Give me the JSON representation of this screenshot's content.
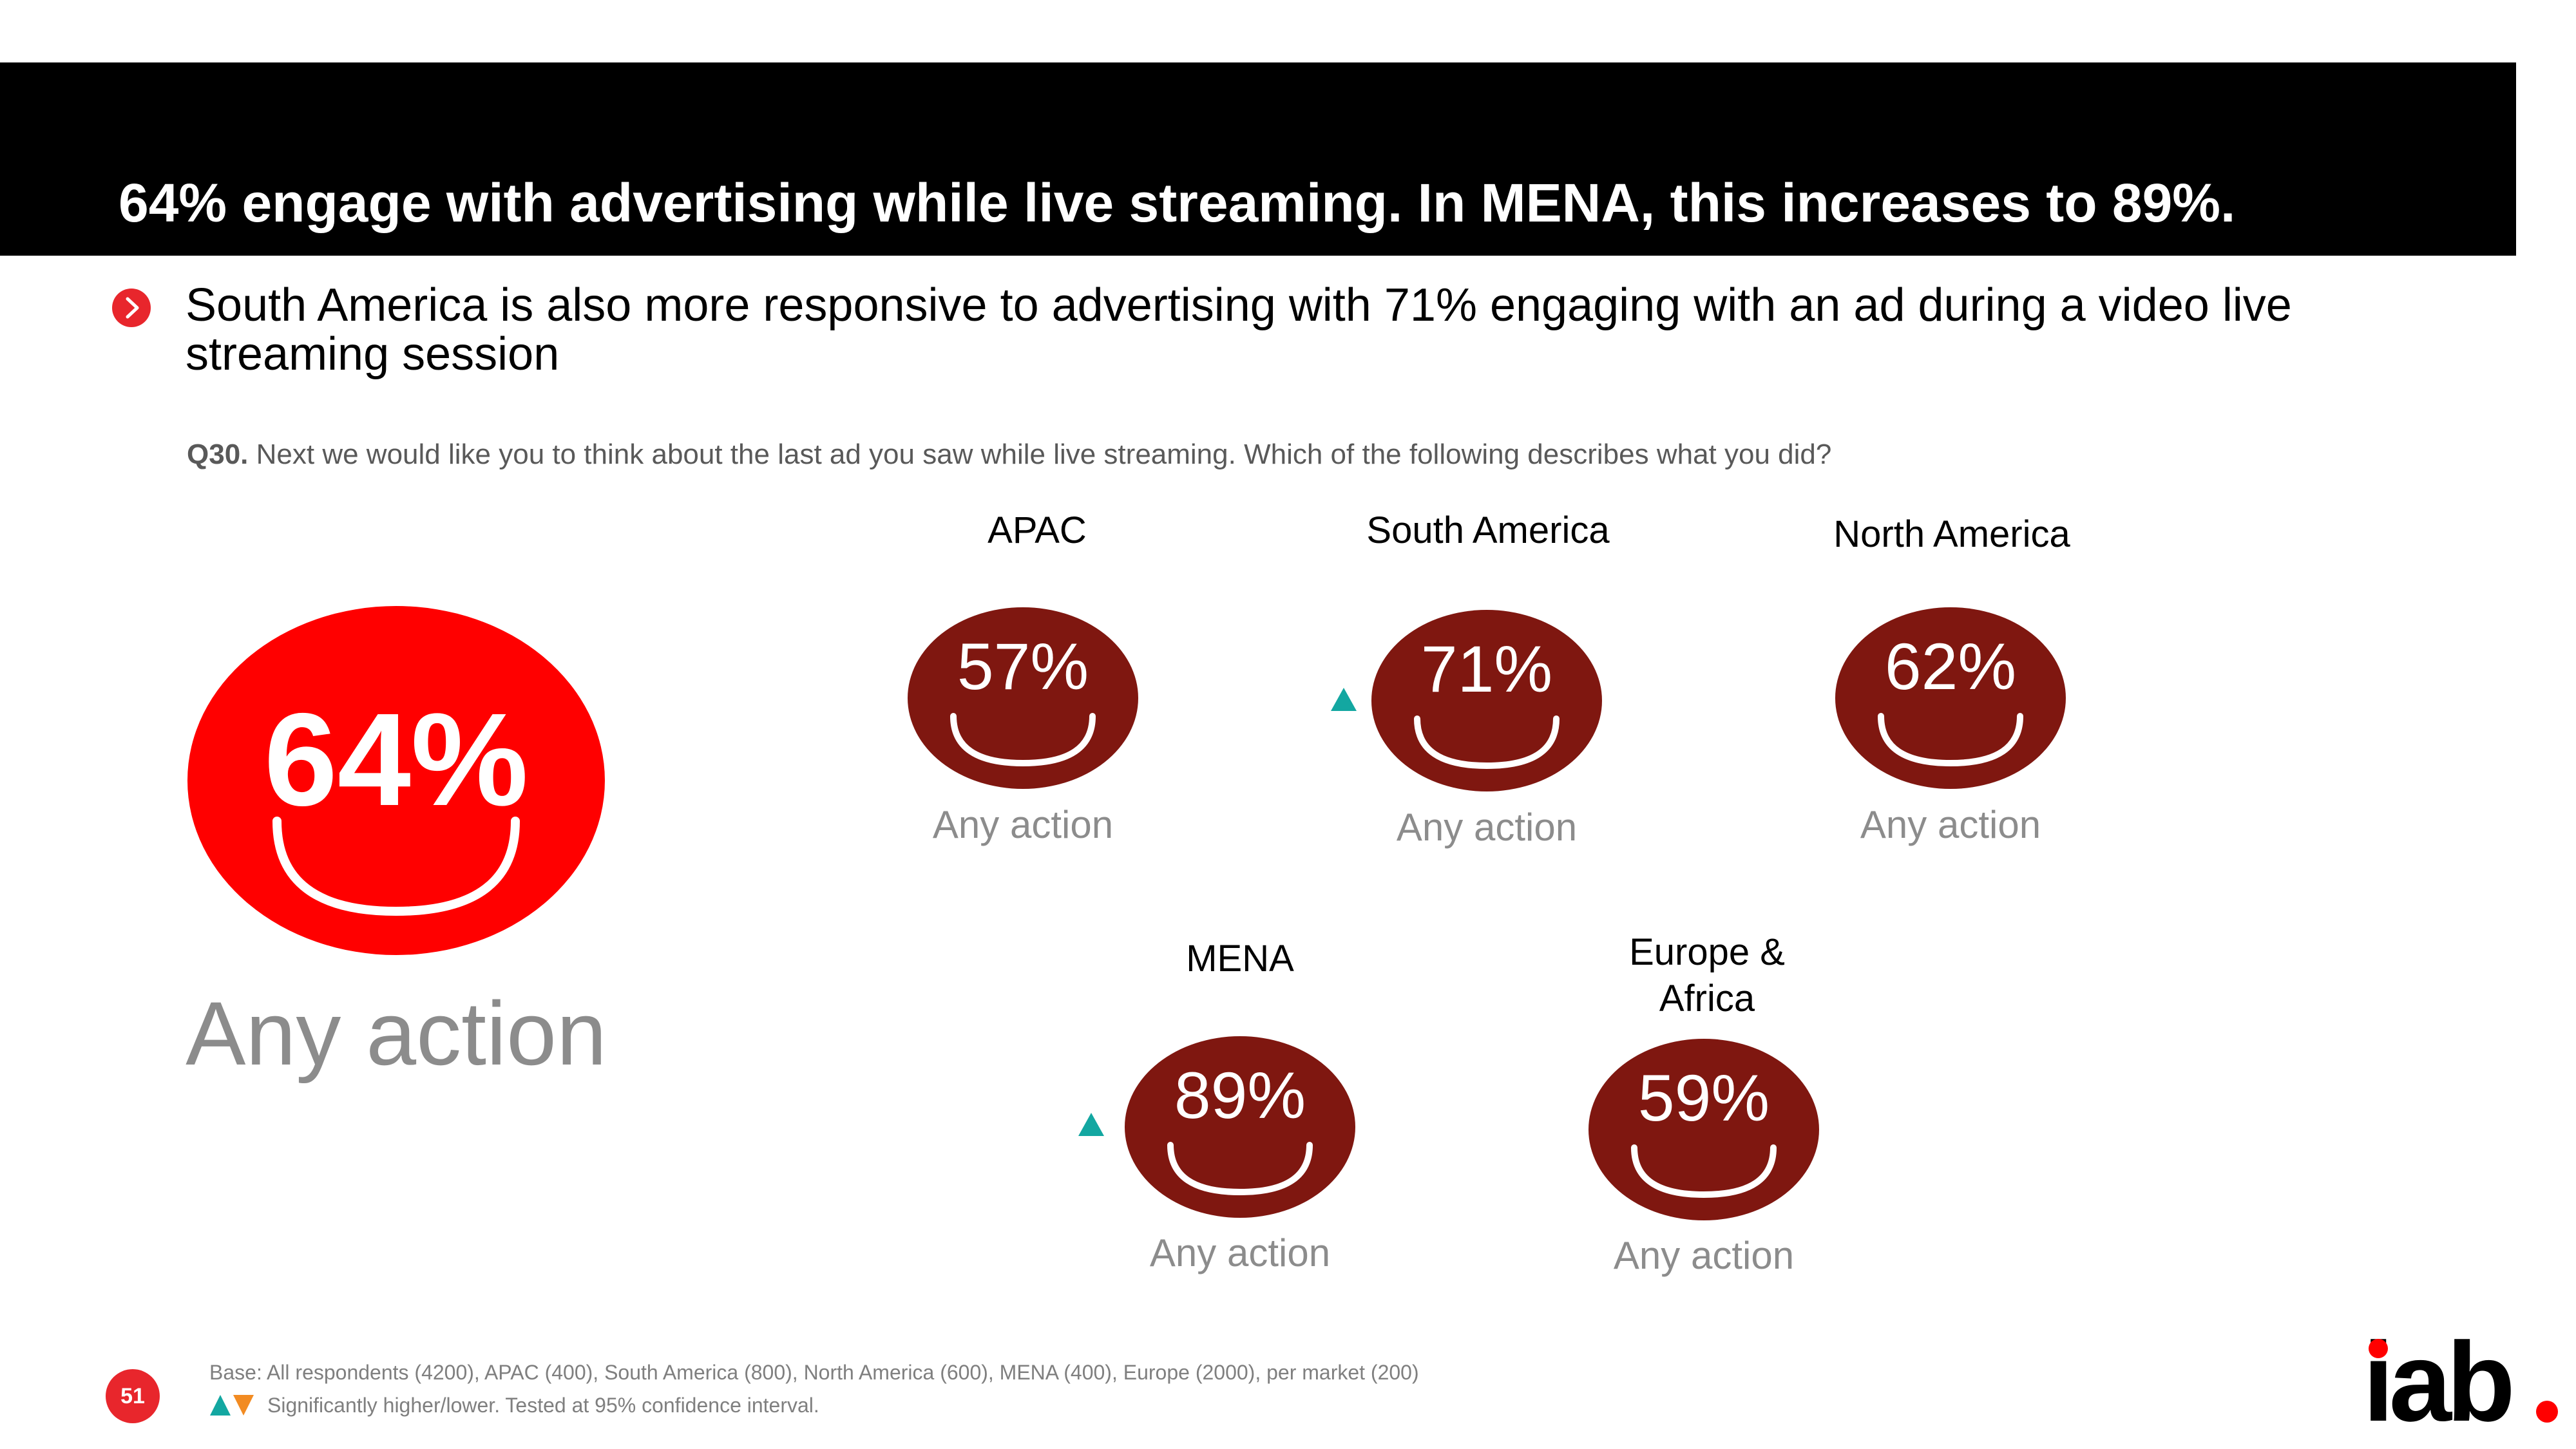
{
  "title": "64% engage with advertising while live streaming. In MENA, this increases to 89%.",
  "bullet": "South America is also more responsive to advertising with 71% engaging with an ad during a video live streaming session",
  "question": {
    "number": "Q30.",
    "text": "Next we would like you to think about the last ad you saw while live streaming. Which of the following describes what you did?"
  },
  "overall": {
    "value": "64%",
    "label": "Any action"
  },
  "regions": [
    {
      "name": "APAC",
      "value": "57%",
      "label": "Any action",
      "significant": "none"
    },
    {
      "name": "South America",
      "value": "71%",
      "label": "Any action",
      "significant": "higher"
    },
    {
      "name": "North America",
      "value": "62%",
      "label": "Any action",
      "significant": "none"
    },
    {
      "name": "MENA",
      "value": "89%",
      "label": "Any action",
      "significant": "higher"
    },
    {
      "name": "Europe & Africa",
      "value": "59%",
      "label": "Any action",
      "significant": "none"
    }
  ],
  "footnote": {
    "base": "Base: All respondents (4200), APAC (400), South America (800), North America (600), MENA (400), Europe (2000), per market (200)",
    "legend": "Significantly higher/lower. Tested at 95% confidence interval."
  },
  "page_number": "51",
  "logo_text": "iab.",
  "colors": {
    "title_bar": "#000000",
    "accent_red": "#ff0000",
    "region_circle": "#7f1710",
    "higher_arrow": "#13a7a1",
    "lower_arrow": "#f28b22",
    "muted_text": "#8c8c8c"
  },
  "icons": {
    "bullet": "chevron-right-icon",
    "face": "smile-face-icon",
    "higher": "triangle-up-icon",
    "lower": "triangle-down-icon"
  }
}
